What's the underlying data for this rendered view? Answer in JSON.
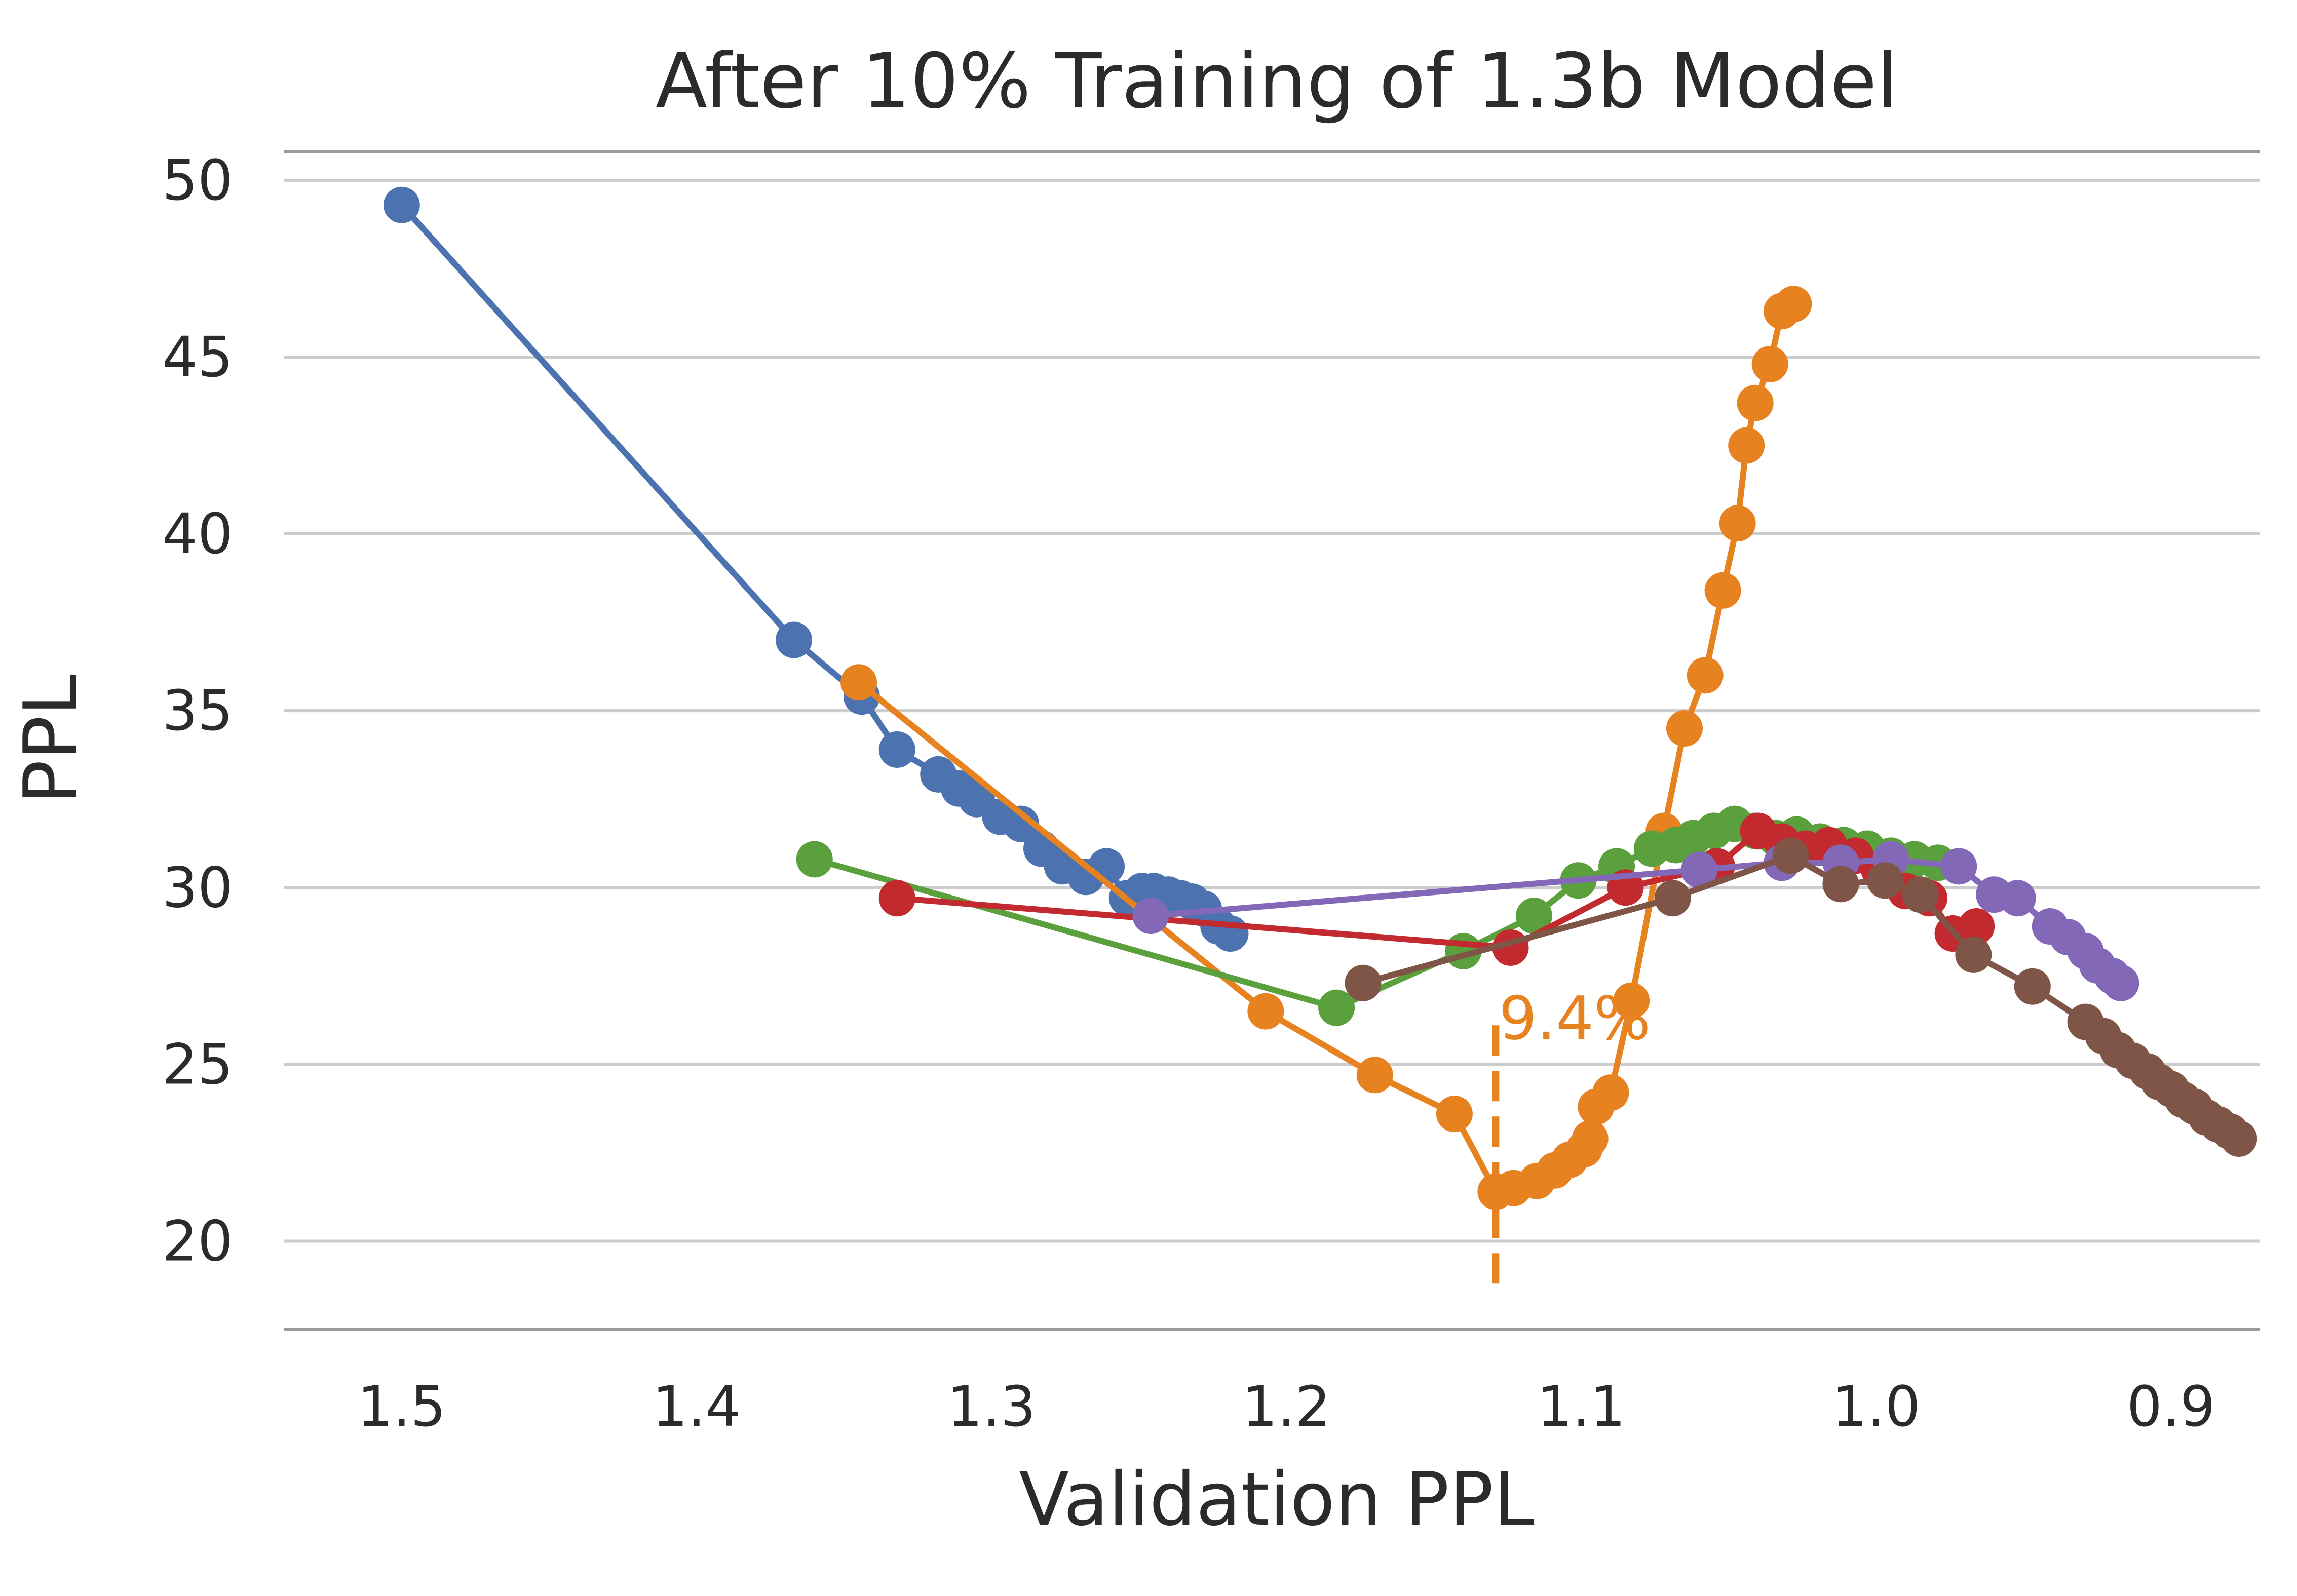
{
  "chart_data": {
    "type": "line",
    "title": "After 10% Training of 1.3b Model",
    "xlabel": "Validation PPL",
    "ylabel": "PPL",
    "x_reversed": true,
    "xlim": [
      1.54,
      0.87
    ],
    "ylim": [
      17.5,
      50.8
    ],
    "x_ticks": [
      "1.5",
      "1.4",
      "1.3",
      "1.2",
      "1.1",
      "1.0",
      "0.9"
    ],
    "y_ticks": [
      "20",
      "25",
      "30",
      "35",
      "40",
      "45",
      "50"
    ],
    "grid": "horizontal",
    "colors": {
      "blue": "#4c72b0",
      "orange": "#e68220",
      "green": "#5aa03c",
      "red": "#c22a2f",
      "purple": "#8468b8",
      "brown": "#7f5548",
      "grid": "#cccccc",
      "frame": "#999999"
    },
    "series": [
      {
        "color": "#4c72b0",
        "x": [
          1.5,
          1.367,
          1.344,
          1.332,
          1.318,
          1.311,
          1.305,
          1.297,
          1.29,
          1.283,
          1.276,
          1.268,
          1.261,
          1.254,
          1.249,
          1.245,
          1.24,
          1.236,
          1.232,
          1.228,
          1.223,
          1.219
        ],
        "y": [
          49.3,
          37.0,
          35.4,
          33.9,
          33.2,
          32.8,
          32.5,
          32.0,
          31.8,
          31.1,
          30.6,
          30.3,
          30.6,
          29.7,
          29.9,
          29.9,
          29.8,
          29.7,
          29.6,
          29.4,
          28.9,
          28.7
        ]
      },
      {
        "color": "#e68220",
        "x": [
          1.345,
          1.207,
          1.17,
          1.143,
          1.129,
          1.123,
          1.115,
          1.109,
          1.104,
          1.099,
          1.097,
          1.095,
          1.09,
          1.083,
          1.072,
          1.065,
          1.058,
          1.052,
          1.047,
          1.044,
          1.041,
          1.036,
          1.032,
          1.028
        ],
        "y": [
          35.8,
          26.5,
          24.7,
          23.6,
          21.4,
          21.5,
          21.7,
          22.0,
          22.3,
          22.6,
          22.9,
          23.8,
          24.2,
          26.8,
          31.6,
          34.5,
          36.0,
          38.4,
          40.3,
          42.5,
          43.7,
          44.8,
          46.3,
          46.5
        ]
      },
      {
        "color": "#5aa03c",
        "x": [
          1.36,
          1.183,
          1.14,
          1.116,
          1.101,
          1.088,
          1.076,
          1.068,
          1.062,
          1.055,
          1.048,
          1.041,
          1.034,
          1.027,
          1.019,
          1.011,
          1.003,
          0.995,
          0.987,
          0.979
        ],
        "y": [
          30.8,
          26.6,
          28.2,
          29.2,
          30.2,
          30.6,
          31.1,
          31.2,
          31.4,
          31.6,
          31.8,
          31.6,
          31.4,
          31.5,
          31.3,
          31.2,
          31.1,
          30.9,
          30.8,
          30.7
        ]
      },
      {
        "color": "#c22a2f",
        "x": [
          1.332,
          1.124,
          1.085,
          1.054,
          1.04,
          1.032,
          1.024,
          1.016,
          1.007,
          0.999,
          0.99,
          0.982,
          0.974,
          0.966
        ],
        "y": [
          29.7,
          28.3,
          30.0,
          30.6,
          31.6,
          31.3,
          31.1,
          31.2,
          30.9,
          30.5,
          29.9,
          29.7,
          28.7,
          28.9
        ]
      },
      {
        "color": "#8468b8",
        "x": [
          1.246,
          1.06,
          1.032,
          1.012,
          0.995,
          0.972,
          0.96,
          0.952,
          0.941,
          0.935,
          0.929,
          0.925,
          0.92,
          0.917
        ],
        "y": [
          29.2,
          30.5,
          30.7,
          30.7,
          30.8,
          30.6,
          29.8,
          29.7,
          28.9,
          28.6,
          28.2,
          27.8,
          27.5,
          27.3
        ]
      },
      {
        "color": "#7f5548",
        "x": [
          1.174,
          1.069,
          1.029,
          1.012,
          0.997,
          0.985,
          0.967,
          0.947,
          0.929,
          0.923,
          0.918,
          0.913,
          0.908,
          0.904,
          0.9,
          0.896,
          0.892,
          0.888,
          0.884,
          0.88,
          0.877
        ],
        "y": [
          27.3,
          29.7,
          30.9,
          30.1,
          30.2,
          29.8,
          28.1,
          27.2,
          26.2,
          25.8,
          25.4,
          25.1,
          24.8,
          24.5,
          24.3,
          24.0,
          23.8,
          23.5,
          23.3,
          23.1,
          22.9
        ]
      }
    ],
    "annotation": {
      "text": "9.4%",
      "x": 1.129,
      "y": 26.0,
      "vline_x": 1.129,
      "vline_y": [
        18.8,
        26.4
      ],
      "color": "#e68220"
    }
  }
}
